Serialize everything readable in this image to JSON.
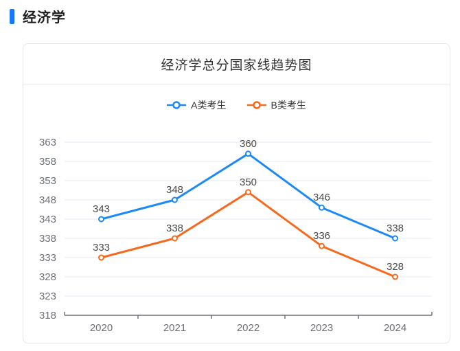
{
  "header": {
    "title": "经济学",
    "accent_color": "#1677ff"
  },
  "card": {
    "title": "经济学总分国家线趋势图"
  },
  "chart_data": {
    "type": "line",
    "title": "经济学总分国家线趋势图",
    "categories": [
      "2020",
      "2021",
      "2022",
      "2023",
      "2024"
    ],
    "series": [
      {
        "name": "A类考生",
        "color": "#1d89f5",
        "values": [
          343,
          348,
          360,
          346,
          338
        ]
      },
      {
        "name": "B类考生",
        "color": "#f7691d",
        "values": [
          333,
          338,
          350,
          336,
          328
        ]
      }
    ],
    "ylim": [
      318,
      363
    ],
    "y_ticks": [
      318,
      323,
      328,
      333,
      338,
      343,
      348,
      353,
      358,
      363
    ],
    "grid": true,
    "grid_color": "#e3e9f3",
    "axis_color": "#6E7079",
    "tick_label_color": "#6E7079",
    "data_label_color": "#494949",
    "legend_position": "top",
    "data_labels": true,
    "marker": "circle-hollow"
  }
}
